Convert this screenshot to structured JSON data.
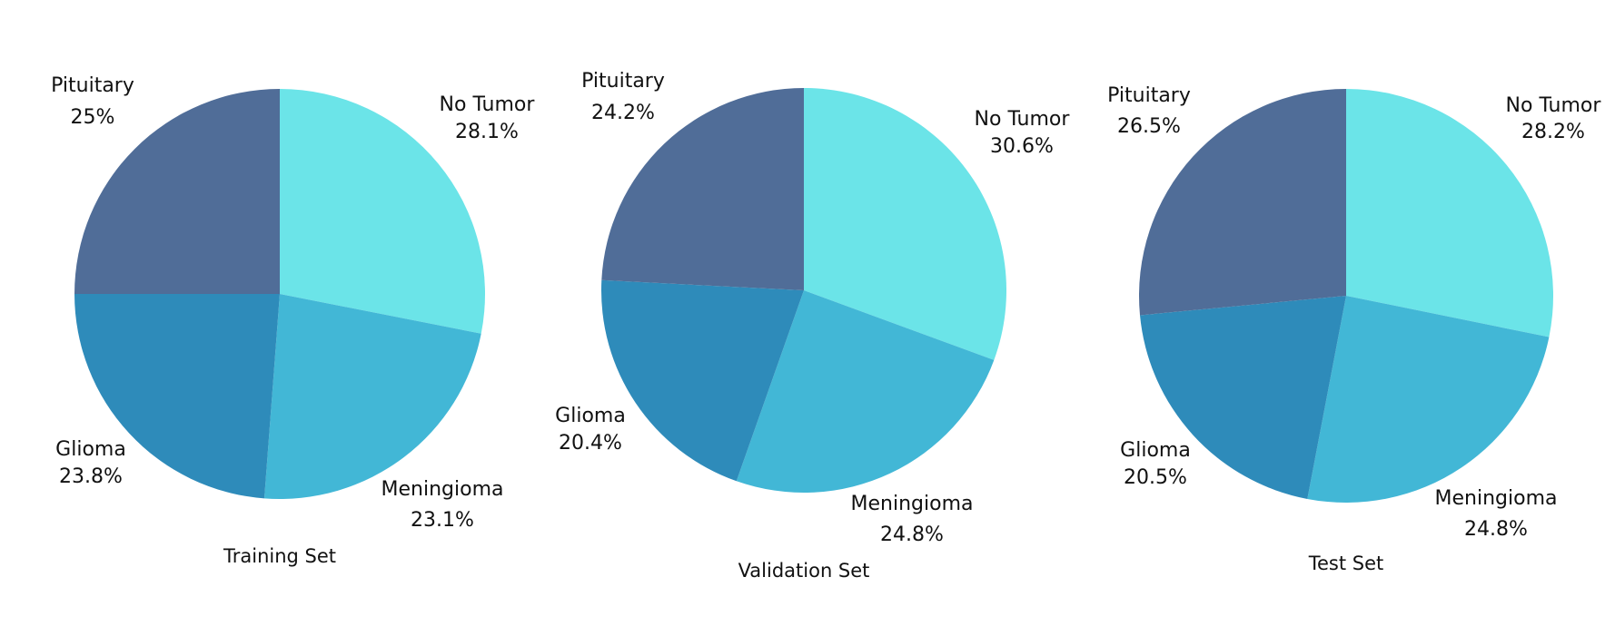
{
  "chart_data": [
    {
      "type": "pie",
      "title": "",
      "caption": "Training Set",
      "slices": [
        {
          "label": "No Tumor",
          "value": 28.1,
          "value_label": "28.1%",
          "color": "#6BE4E8"
        },
        {
          "label": "Meningioma",
          "value": 23.1,
          "value_label": "23.1%",
          "color": "#42B7D6"
        },
        {
          "label": "Glioma",
          "value": 23.8,
          "value_label": "23.8%",
          "color": "#2E8BBA"
        },
        {
          "label": "Pituitary",
          "value": 25,
          "value_label": "25%",
          "color": "#506D98"
        }
      ]
    },
    {
      "type": "pie",
      "title": "",
      "caption": "Validation Set",
      "slices": [
        {
          "label": "No Tumor",
          "value": 30.6,
          "value_label": "30.6%",
          "color": "#6BE4E8"
        },
        {
          "label": "Meningioma",
          "value": 24.8,
          "value_label": "24.8%",
          "color": "#42B7D6"
        },
        {
          "label": "Glioma",
          "value": 20.4,
          "value_label": "20.4%",
          "color": "#2E8BBA"
        },
        {
          "label": "Pituitary",
          "value": 24.2,
          "value_label": "24.2%",
          "color": "#506D98"
        }
      ]
    },
    {
      "type": "pie",
      "title": "",
      "caption": "Test Set",
      "slices": [
        {
          "label": "No Tumor",
          "value": 28.2,
          "value_label": "28.2%",
          "color": "#6BE4E8"
        },
        {
          "label": "Meningioma",
          "value": 24.8,
          "value_label": "24.8%",
          "color": "#42B7D6"
        },
        {
          "label": "Glioma",
          "value": 20.5,
          "value_label": "20.5%",
          "color": "#2E8BBA"
        },
        {
          "label": "Pituitary",
          "value": 26.5,
          "value_label": "26.5%",
          "color": "#506D98"
        }
      ]
    }
  ]
}
